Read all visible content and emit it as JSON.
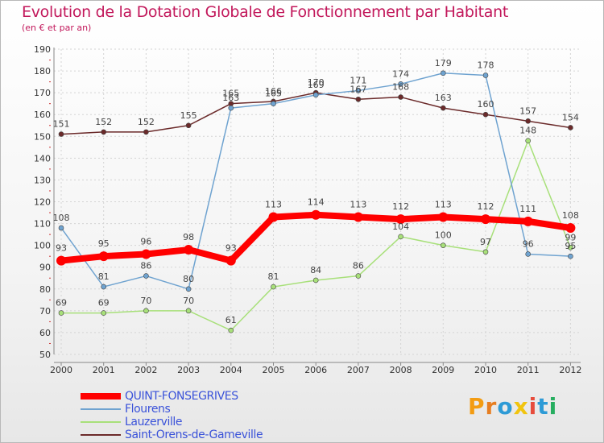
{
  "title": "Evolution de la Dotation Globale de Fonctionnement par Habitant",
  "subtitle": "(en € et par an)",
  "chart_data": {
    "type": "line",
    "title": "Evolution de la Dotation Globale de Fonctionnement par Habitant",
    "subtitle": "(en € et par an)",
    "xlabel": "",
    "ylabel": "",
    "categories": [
      "2000",
      "2001",
      "2002",
      "2003",
      "2004",
      "2005",
      "2006",
      "2007",
      "2008",
      "2009",
      "2010",
      "2011",
      "2012"
    ],
    "ylim": [
      50,
      190
    ],
    "yticks": [
      50,
      60,
      70,
      80,
      90,
      100,
      110,
      120,
      130,
      140,
      150,
      160,
      170,
      180,
      190
    ],
    "grid": true,
    "series": [
      {
        "name": "Saint-Orens-de-Gameville",
        "color": "#6b2a2a",
        "values": [
          151,
          152,
          152,
          155,
          165,
          166,
          170,
          167,
          168,
          163,
          160,
          157,
          154
        ]
      },
      {
        "name": "Lauzerville",
        "color": "#a8e07a",
        "values": [
          69,
          69,
          70,
          70,
          61,
          81,
          84,
          86,
          104,
          100,
          97,
          148,
          99
        ]
      },
      {
        "name": "Flourens",
        "color": "#6fa3d0",
        "values": [
          108,
          81,
          86,
          80,
          163,
          165,
          169,
          171,
          174,
          179,
          178,
          96,
          95
        ]
      },
      {
        "name": "QUINT-FONSEGRIVES",
        "color": "#ff0000",
        "values": [
          93,
          95,
          96,
          98,
          93,
          113,
          114,
          113,
          112,
          113,
          112,
          111,
          108
        ]
      }
    ]
  },
  "legend": [
    {
      "name": "QUINT-FONSEGRIVES",
      "color": "#ff0000"
    },
    {
      "name": "Flourens",
      "color": "#6fa3d0"
    },
    {
      "name": "Lauzerville",
      "color": "#a8e07a"
    },
    {
      "name": "Saint-Orens-de-Gameville",
      "color": "#6b2a2a"
    }
  ],
  "logo": {
    "text": "Proxiti",
    "colors": [
      "#f39c12",
      "#e67e22",
      "#2e9bd6",
      "#f1c40f",
      "#e74c3c",
      "#2e9bd6",
      "#27ae60"
    ]
  }
}
